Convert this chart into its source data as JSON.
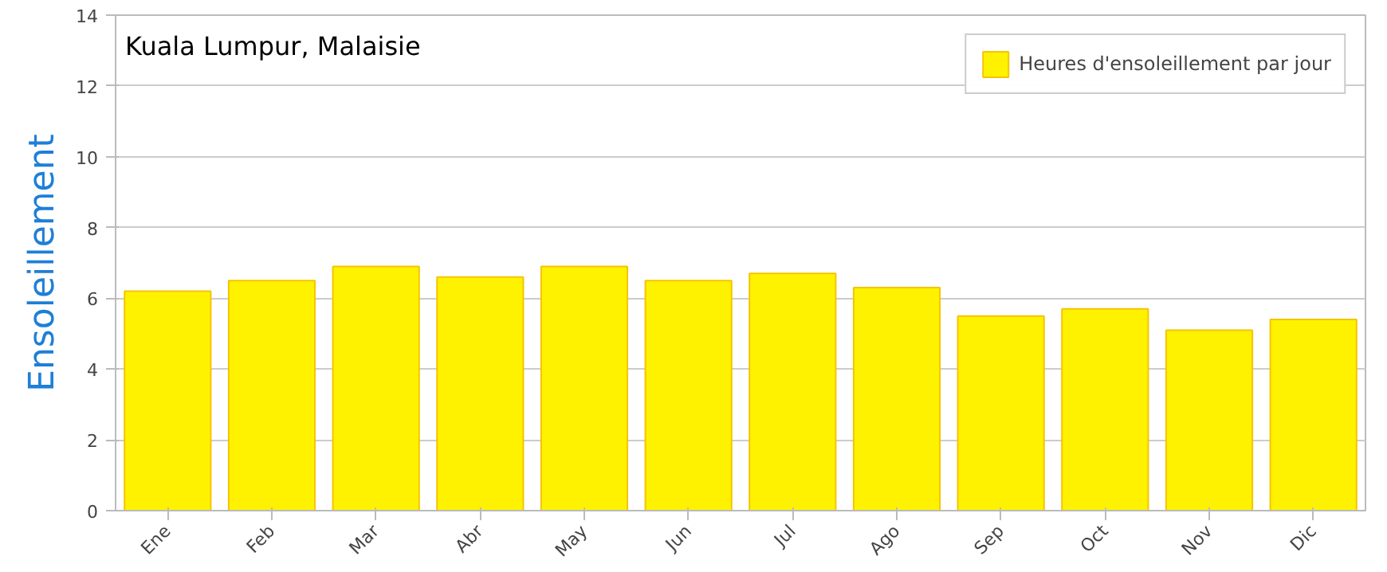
{
  "chart_data": {
    "type": "bar",
    "title": "Kuala Lumpur, Malaisie",
    "ylabel": "Ensoleillement",
    "categories": [
      "Ene",
      "Feb",
      "Mar",
      "Abr",
      "May",
      "Jun",
      "Jul",
      "Ago",
      "Sep",
      "Oct",
      "Nov",
      "Dic"
    ],
    "series": [
      {
        "name": "Heures d'ensoleillement par jour",
        "color": "#fff200",
        "values": [
          6.2,
          6.5,
          6.9,
          6.6,
          6.9,
          6.5,
          6.7,
          6.3,
          5.5,
          5.7,
          5.1,
          5.4
        ]
      }
    ],
    "ylim": [
      0,
      14
    ],
    "yticks": [
      0,
      2,
      4,
      6,
      8,
      10,
      12,
      14
    ],
    "grid": "y",
    "legend": "top right"
  }
}
